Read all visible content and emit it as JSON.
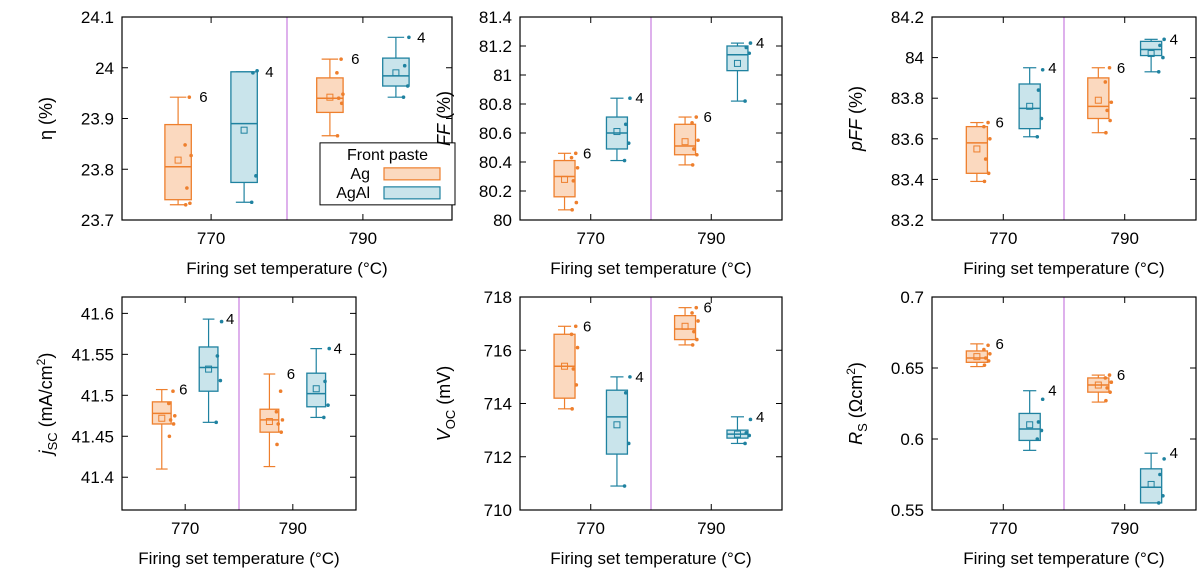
{
  "colors": {
    "ag_stroke": "#ee7f2d",
    "ag_fill": "#fbd9bf",
    "agal_stroke": "#1f82a0",
    "agal_fill": "#c9e4eb",
    "divider": "#c77de0"
  },
  "legend": {
    "title": "Front paste",
    "entries": [
      "Ag",
      "AgAl"
    ]
  },
  "chart_data": [
    {
      "type": "box",
      "id": "eta",
      "ylabel": "η (%)",
      "xlabel": "Firing set temperature (°C)",
      "categories": [
        "770",
        "790"
      ],
      "ylim": [
        23.7,
        24.1
      ],
      "yticks": [
        "23.7",
        "23.8",
        "23.9",
        "24",
        "24.1"
      ],
      "legend": true,
      "series": [
        {
          "name": "Ag",
          "boxes": [
            {
              "min": 23.73,
              "q1": 23.74,
              "median": 23.805,
              "q3": 23.888,
              "max": 23.942,
              "mean": 23.818,
              "n": "6",
              "points": [
                23.73,
                23.733,
                23.763,
                23.827,
                23.848,
                23.942
              ]
            },
            {
              "min": 23.866,
              "q1": 23.912,
              "median": 23.94,
              "q3": 23.98,
              "max": 24.017,
              "mean": 23.942,
              "n": "6",
              "points": [
                23.866,
                23.93,
                23.94,
                23.948,
                23.99,
                24.017
              ]
            }
          ]
        },
        {
          "name": "AgAl",
          "boxes": [
            {
              "min": 23.735,
              "q1": 23.774,
              "median": 23.89,
              "q3": 23.992,
              "max": 23.992,
              "mean": 23.877,
              "n": "4",
              "points": [
                23.735,
                23.787,
                23.99,
                23.994
              ]
            },
            {
              "min": 23.942,
              "q1": 23.964,
              "median": 23.984,
              "q3": 24.019,
              "max": 24.06,
              "mean": 23.99,
              "n": "4",
              "points": [
                23.942,
                23.964,
                24.004,
                24.06
              ]
            }
          ]
        }
      ]
    },
    {
      "type": "box",
      "id": "ff",
      "ylabel": "FF (%)",
      "ylabel_italic": true,
      "xlabel": "Firing set temperature (°C)",
      "categories": [
        "770",
        "790"
      ],
      "ylim": [
        80,
        81.4
      ],
      "yticks": [
        "80",
        "80.2",
        "80.4",
        "80.6",
        "80.8",
        "81",
        "81.2",
        "81.4"
      ],
      "series": [
        {
          "name": "Ag",
          "boxes": [
            {
              "min": 80.07,
              "q1": 80.16,
              "median": 80.3,
              "q3": 80.41,
              "max": 80.46,
              "mean": 80.28,
              "n": "6",
              "points": [
                80.07,
                80.12,
                80.27,
                80.36,
                80.43,
                80.46
              ]
            },
            {
              "min": 80.38,
              "q1": 80.45,
              "median": 80.51,
              "q3": 80.66,
              "max": 80.71,
              "mean": 80.54,
              "n": "6",
              "points": [
                80.38,
                80.45,
                80.49,
                80.55,
                80.67,
                80.71
              ]
            }
          ]
        },
        {
          "name": "AgAl",
          "boxes": [
            {
              "min": 80.41,
              "q1": 80.49,
              "median": 80.6,
              "q3": 80.71,
              "max": 80.84,
              "mean": 80.61,
              "n": "4",
              "points": [
                80.41,
                80.53,
                80.66,
                80.84
              ]
            },
            {
              "min": 80.82,
              "q1": 81.03,
              "median": 81.14,
              "q3": 81.2,
              "max": 81.22,
              "mean": 81.08,
              "n": "4",
              "points": [
                80.82,
                81.15,
                81.19,
                81.22
              ]
            }
          ]
        }
      ]
    },
    {
      "type": "box",
      "id": "pff",
      "ylabel": "pFF (%)",
      "ylabel_italic": true,
      "xlabel": "Firing set temperature (°C)",
      "categories": [
        "770",
        "790"
      ],
      "ylim": [
        83.2,
        84.2
      ],
      "yticks": [
        "83.2",
        "83.4",
        "83.6",
        "83.8",
        "84",
        "84.2"
      ],
      "series": [
        {
          "name": "Ag",
          "boxes": [
            {
              "min": 83.39,
              "q1": 83.43,
              "median": 83.58,
              "q3": 83.66,
              "max": 83.68,
              "mean": 83.55,
              "n": "6",
              "points": [
                83.39,
                83.43,
                83.5,
                83.6,
                83.66,
                83.68
              ]
            },
            {
              "min": 83.63,
              "q1": 83.7,
              "median": 83.76,
              "q3": 83.9,
              "max": 83.95,
              "mean": 83.79,
              "n": "6",
              "points": [
                83.63,
                83.69,
                83.74,
                83.78,
                83.88,
                83.95
              ]
            }
          ]
        },
        {
          "name": "AgAl",
          "boxes": [
            {
              "min": 83.61,
              "q1": 83.65,
              "median": 83.75,
              "q3": 83.87,
              "max": 83.95,
              "mean": 83.76,
              "n": "4",
              "points": [
                83.61,
                83.7,
                83.84,
                83.94
              ]
            },
            {
              "min": 83.93,
              "q1": 84.01,
              "median": 84.04,
              "q3": 84.08,
              "max": 84.09,
              "mean": 84.02,
              "n": "4",
              "points": [
                83.93,
                84.0,
                84.06,
                84.09
              ]
            }
          ]
        }
      ]
    },
    {
      "type": "box",
      "id": "jsc",
      "ylabel": "jSC (mA/cm2)",
      "ylabel_parts": [
        "j",
        "SC",
        " (mA/cm",
        "2",
        ")"
      ],
      "xlabel": "Firing set temperature (°C)",
      "categories": [
        "770",
        "790"
      ],
      "ylim": [
        41.36,
        41.62
      ],
      "yticks": [
        "41.4",
        "41.45",
        "41.5",
        "41.55",
        "41.6"
      ],
      "series": [
        {
          "name": "Ag",
          "boxes": [
            {
              "min": 41.41,
              "q1": 41.465,
              "median": 41.478,
              "q3": 41.492,
              "max": 41.507,
              "mean": 41.472,
              "n": "6",
              "points": [
                41.45,
                41.465,
                41.47,
                41.475,
                41.49,
                41.505
              ]
            },
            {
              "min": 41.413,
              "q1": 41.455,
              "median": 41.47,
              "q3": 41.483,
              "max": 41.526,
              "mean": 41.468,
              "n": "6",
              "points": [
                41.44,
                41.455,
                41.465,
                41.47,
                41.48,
                41.505
              ]
            }
          ]
        },
        {
          "name": "AgAl",
          "boxes": [
            {
              "min": 41.467,
              "q1": 41.505,
              "median": 41.534,
              "q3": 41.559,
              "max": 41.593,
              "mean": 41.532,
              "n": "4",
              "points": [
                41.467,
                41.518,
                41.548,
                41.59
              ]
            },
            {
              "min": 41.473,
              "q1": 41.486,
              "median": 41.502,
              "q3": 41.527,
              "max": 41.557,
              "mean": 41.508,
              "n": "4",
              "points": [
                41.473,
                41.488,
                41.517,
                41.557
              ]
            }
          ]
        }
      ]
    },
    {
      "type": "box",
      "id": "voc",
      "ylabel": "VOC (mV)",
      "ylabel_parts": [
        "V",
        "OC",
        " (mV)"
      ],
      "xlabel": "Firing set temperature (°C)",
      "categories": [
        "770",
        "790"
      ],
      "ylim": [
        710,
        718
      ],
      "yticks": [
        "710",
        "712",
        "714",
        "716",
        "718"
      ],
      "series": [
        {
          "name": "Ag",
          "boxes": [
            {
              "min": 713.8,
              "q1": 714.2,
              "median": 715.4,
              "q3": 716.6,
              "max": 716.9,
              "mean": 715.4,
              "n": "6",
              "points": [
                713.8,
                714.7,
                715.3,
                716.1,
                716.6,
                716.9
              ]
            },
            {
              "min": 716.2,
              "q1": 716.4,
              "median": 716.8,
              "q3": 717.3,
              "max": 717.6,
              "mean": 716.9,
              "n": "6",
              "points": [
                716.2,
                716.4,
                716.7,
                717.1,
                717.4,
                717.6
              ]
            }
          ]
        },
        {
          "name": "AgAl",
          "boxes": [
            {
              "min": 710.9,
              "q1": 712.1,
              "median": 713.5,
              "q3": 714.5,
              "max": 715.0,
              "mean": 713.2,
              "n": "4",
              "points": [
                710.9,
                712.5,
                714.4,
                715.0
              ]
            },
            {
              "min": 712.5,
              "q1": 712.7,
              "median": 712.85,
              "q3": 713.0,
              "max": 713.5,
              "mean": 712.85,
              "n": "4",
              "points": [
                712.5,
                712.8,
                712.9,
                713.4
              ]
            }
          ]
        }
      ]
    },
    {
      "type": "box",
      "id": "rs",
      "ylabel": "RS (Ωcm2)",
      "ylabel_parts": [
        "R",
        "S",
        " (Ωcm",
        "2",
        ")"
      ],
      "xlabel": "Firing set temperature (°C)",
      "categories": [
        "770",
        "790"
      ],
      "ylim": [
        0.55,
        0.7
      ],
      "yticks": [
        "0.55",
        "0.6",
        "0.65",
        "0.7"
      ],
      "series": [
        {
          "name": "Ag",
          "boxes": [
            {
              "min": 0.651,
              "q1": 0.654,
              "median": 0.657,
              "q3": 0.662,
              "max": 0.667,
              "mean": 0.658,
              "n": "6",
              "points": [
                0.652,
                0.655,
                0.657,
                0.66,
                0.663,
                0.666
              ]
            },
            {
              "min": 0.626,
              "q1": 0.633,
              "median": 0.638,
              "q3": 0.643,
              "max": 0.645,
              "mean": 0.638,
              "n": "6",
              "points": [
                0.627,
                0.633,
                0.636,
                0.64,
                0.643,
                0.645
              ]
            }
          ]
        },
        {
          "name": "AgAl",
          "boxes": [
            {
              "min": 0.592,
              "q1": 0.599,
              "median": 0.607,
              "q3": 0.618,
              "max": 0.634,
              "mean": 0.61,
              "n": "4",
              "points": [
                0.6,
                0.606,
                0.612,
                0.628
              ]
            },
            {
              "min": 0.555,
              "q1": 0.555,
              "median": 0.566,
              "q3": 0.579,
              "max": 0.59,
              "mean": 0.568,
              "n": "4",
              "points": [
                0.555,
                0.56,
                0.575,
                0.586
              ]
            }
          ]
        }
      ]
    }
  ]
}
